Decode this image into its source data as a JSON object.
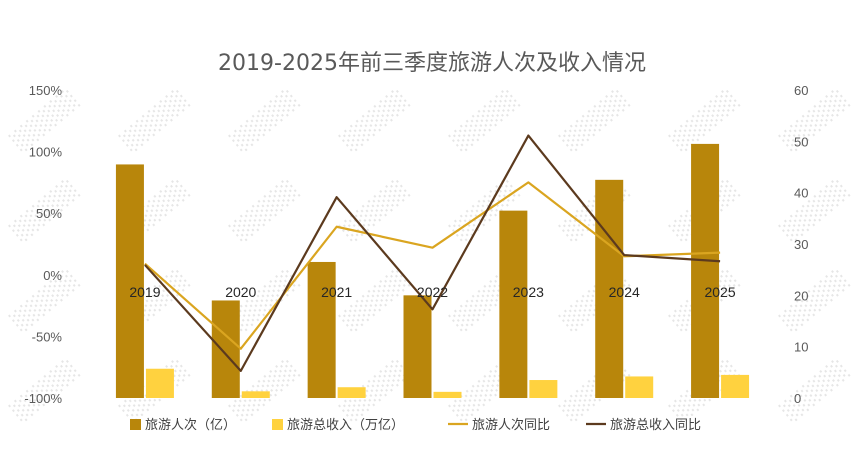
{
  "chart_data": {
    "type": "bar",
    "title": "2019-2025年前三季度旅游人次及收入情况",
    "categories": [
      "2019",
      "2020",
      "2021",
      "2022",
      "2023",
      "2024",
      "2025"
    ],
    "y_left": {
      "min": -1.0,
      "max": 1.5,
      "step": 0.5,
      "tick_labels": [
        "-100%",
        "-50%",
        "0%",
        "50%",
        "100%",
        "150%"
      ]
    },
    "y_right": {
      "min": 0,
      "max": 60,
      "step": 10,
      "tick_labels": [
        "0",
        "10",
        "20",
        "30",
        "40",
        "50",
        "60"
      ]
    },
    "series": [
      {
        "name": "旅游人次（亿）",
        "type": "bar",
        "axis": "right",
        "color": "#B8860B",
        "values": [
          45.5,
          19,
          26.5,
          20,
          36.5,
          42.5,
          49.5
        ]
      },
      {
        "name": "旅游总收入（万亿）",
        "type": "bar",
        "axis": "right",
        "color": "#FFD23F",
        "values": [
          5.7,
          1.3,
          2.1,
          1.2,
          3.5,
          4.2,
          4.5
        ]
      },
      {
        "name": "旅游人次同比",
        "type": "line",
        "axis": "left",
        "color": "#DAA520",
        "values": [
          0.09,
          -0.6,
          0.39,
          0.22,
          0.75,
          0.15,
          0.18
        ]
      },
      {
        "name": "旅游总收入同比",
        "type": "line",
        "axis": "left",
        "color": "#5C3A1E",
        "values": [
          0.08,
          -0.78,
          0.63,
          -0.28,
          1.13,
          0.16,
          0.11
        ]
      }
    ],
    "legend_position": "bottom",
    "grid": false
  }
}
